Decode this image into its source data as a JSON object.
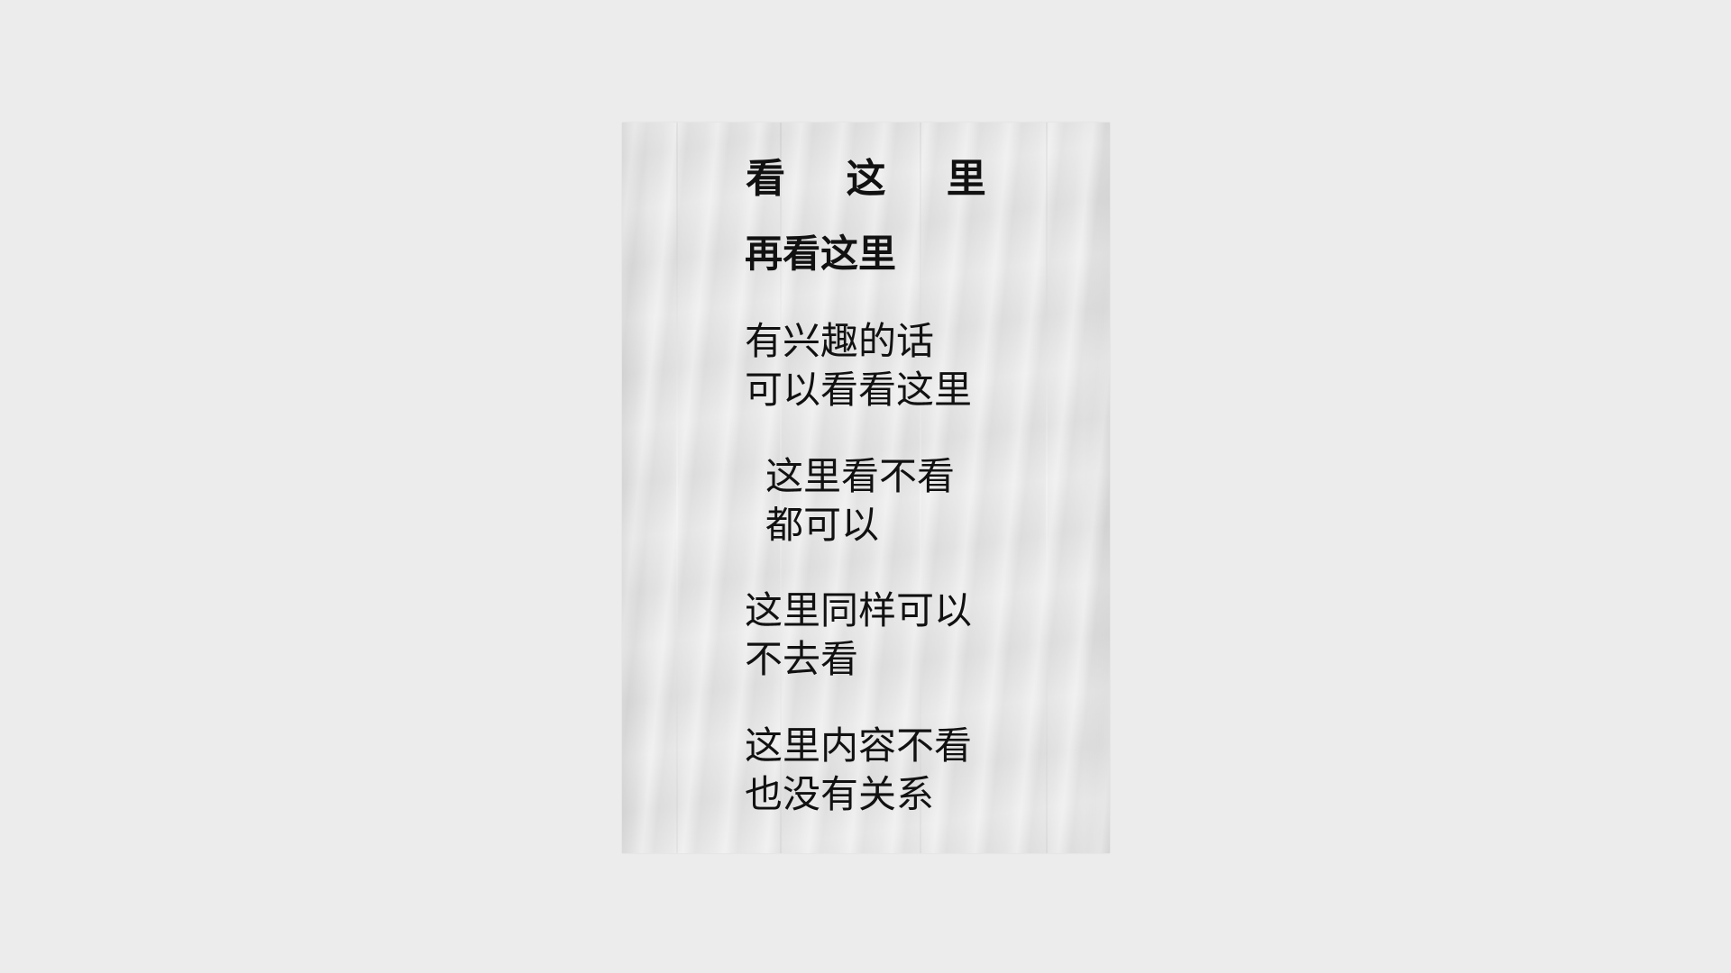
{
  "poster": {
    "title": "看 这 里",
    "subtitle": "再看这里",
    "blocks": [
      {
        "line1": "有兴趣的话",
        "line2": "可以看看这里"
      },
      {
        "line1": "这里看不看",
        "line2": "都可以"
      },
      {
        "line1": "这里同样可以",
        "line2": "不去看"
      },
      {
        "line1": "这里内容不看",
        "line2": "也没有关系"
      }
    ]
  },
  "colors": {
    "background": "#ececec",
    "paper": "#e6e6e6",
    "text": "#111111"
  }
}
